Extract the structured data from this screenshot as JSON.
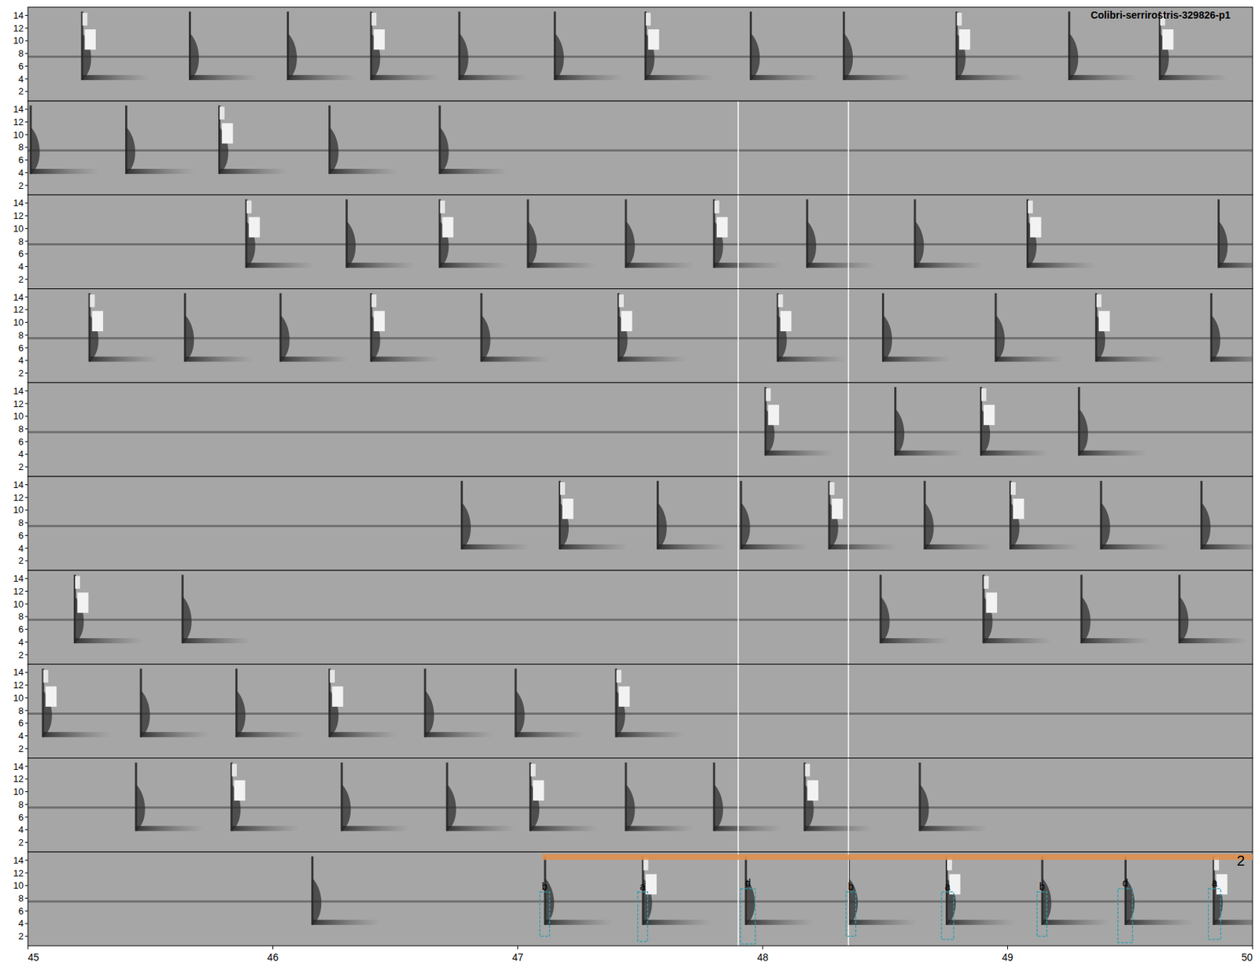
{
  "chart_data": {
    "type": "spectrogram",
    "title": "Colibri-serrirostris-329826-p1",
    "xlim": [
      45,
      50
    ],
    "xticks": [
      45,
      46,
      47,
      48,
      49,
      50
    ],
    "ylim": [
      0.5,
      15.3
    ],
    "yticks": [
      2,
      4,
      6,
      8,
      10,
      12,
      14
    ],
    "background_band_khz": 7.5,
    "marker_lines": [
      47.9,
      48.35
    ],
    "panels": [
      {
        "x": [
          45.22,
          45.66,
          46.06,
          46.4,
          46.76,
          47.15,
          47.52,
          47.95,
          48.33,
          48.79,
          49.25,
          49.62
        ],
        "bright": [
          true,
          false,
          false,
          true,
          false,
          false,
          true,
          false,
          false,
          true,
          false,
          true
        ]
      },
      {
        "x": [
          45.01,
          45.4,
          45.78,
          46.23,
          46.68
        ],
        "bright": [
          false,
          false,
          true,
          false,
          false
        ]
      },
      {
        "x": [
          45.89,
          46.3,
          46.68,
          47.04,
          47.44,
          47.8,
          48.18,
          48.62,
          49.08,
          49.86
        ],
        "bright": [
          true,
          false,
          true,
          false,
          false,
          true,
          false,
          false,
          true,
          false
        ]
      },
      {
        "x": [
          45.25,
          45.64,
          46.03,
          46.4,
          46.85,
          47.41,
          48.06,
          48.49,
          48.95,
          49.36,
          49.83
        ],
        "bright": [
          true,
          false,
          false,
          true,
          false,
          true,
          true,
          false,
          false,
          true,
          false
        ]
      },
      {
        "x": [
          48.01,
          48.54,
          48.89,
          49.29
        ],
        "bright": [
          true,
          false,
          true,
          false
        ]
      },
      {
        "x": [
          46.77,
          47.17,
          47.57,
          47.91,
          48.27,
          48.66,
          49.01,
          49.38,
          49.79
        ],
        "bright": [
          false,
          true,
          false,
          false,
          true,
          false,
          true,
          false,
          false
        ]
      },
      {
        "x": [
          45.19,
          45.63,
          48.48,
          48.9,
          49.3,
          49.7
        ],
        "bright": [
          true,
          false,
          false,
          true,
          false,
          false
        ]
      },
      {
        "x": [
          45.06,
          45.46,
          45.85,
          46.23,
          46.62,
          46.99,
          47.4
        ],
        "bright": [
          true,
          false,
          false,
          true,
          false,
          false,
          true
        ]
      },
      {
        "x": [
          45.44,
          45.83,
          46.28,
          46.71,
          47.05,
          47.44,
          47.8,
          48.17,
          48.64
        ],
        "bright": [
          false,
          true,
          false,
          false,
          true,
          false,
          false,
          true,
          false
        ]
      },
      {
        "x": [
          46.16,
          47.11,
          47.51,
          47.93,
          48.35,
          48.75,
          49.14,
          49.48,
          49.84
        ],
        "bright": [
          false,
          false,
          true,
          false,
          false,
          true,
          false,
          false,
          true
        ]
      }
    ],
    "annotation": {
      "label": "2",
      "span": [
        47.1,
        50
      ],
      "y": 14.5,
      "boxes": [
        {
          "label": "b",
          "x": [
            47.09,
            47.13
          ],
          "y": [
            2,
            9
          ]
        },
        {
          "label": "a",
          "x": [
            47.49,
            47.53
          ],
          "y": [
            1.2,
            9
          ]
        },
        {
          "label": "d",
          "x": [
            47.91,
            47.97
          ],
          "y": [
            0.8,
            9.5
          ]
        },
        {
          "label": "b",
          "x": [
            48.34,
            48.38
          ],
          "y": [
            2,
            9
          ]
        },
        {
          "label": "a",
          "x": [
            48.73,
            48.78
          ],
          "y": [
            1.5,
            9
          ]
        },
        {
          "label": "b",
          "x": [
            49.12,
            49.16
          ],
          "y": [
            2,
            9
          ]
        },
        {
          "label": "d",
          "x": [
            49.45,
            49.51
          ],
          "y": [
            1,
            9.5
          ]
        },
        {
          "label": "a",
          "x": [
            49.82,
            49.87
          ],
          "y": [
            1.5,
            9.5
          ]
        }
      ]
    }
  }
}
